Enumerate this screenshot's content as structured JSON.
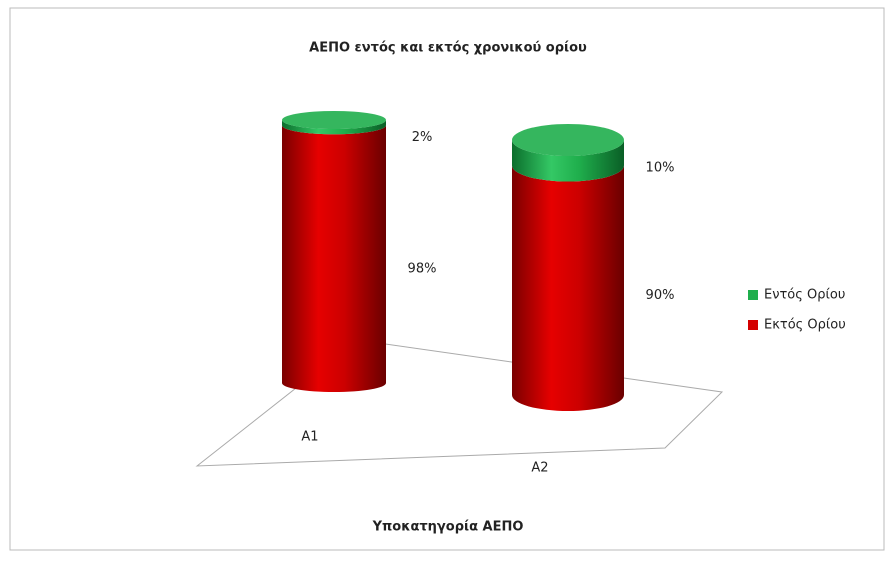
{
  "chart_data": {
    "type": "bar3d_stacked",
    "title": "ΑΕΠΟ εντός και εκτός χρονικού ορίου",
    "x_label": "Υποκατηγορία ΑΕΠΟ",
    "categories": [
      "A1",
      "A2"
    ],
    "series": [
      {
        "name": "Εκτός Ορίου",
        "color": "#d40000",
        "values": [
          98,
          90
        ],
        "value_labels": [
          "98%",
          "90%"
        ]
      },
      {
        "name": "Εντός Ορίου",
        "color": "#1fae4c",
        "values": [
          2,
          10
        ],
        "value_labels": [
          "2%",
          "10%"
        ]
      }
    ],
    "legend": "right"
  }
}
